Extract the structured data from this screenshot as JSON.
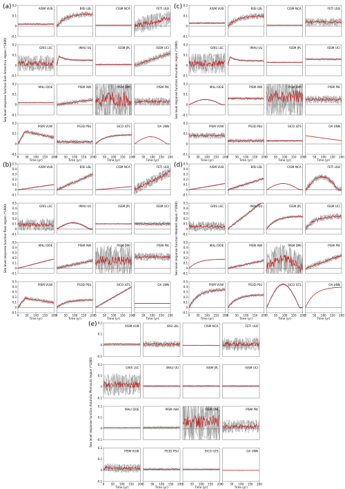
{
  "colors": {
    "ensemble": "#8c8c8c",
    "mean": "#c81e1e",
    "zero": "#000000"
  },
  "chart_data": [
    {
      "type": "line",
      "panel": "(a)",
      "ylabel": "Sea level response function East Antarctica region (*1000)",
      "xlabel": "Time (yr)",
      "xlim": [
        0,
        200
      ],
      "ylim": [
        -0.1,
        0.2
      ],
      "yticks": [
        -0.1,
        0,
        0.1,
        0.2
      ],
      "xticks": [
        0,
        50,
        100,
        150,
        200
      ],
      "grid": false,
      "subplots": [
        {
          "model": "AISM VUB",
          "shape": "flat",
          "level": 0.02,
          "noise": 0.01
        },
        {
          "model": "BISI LBL",
          "shape": "rise_sat",
          "level": 0.12,
          "noise": 0.03
        },
        {
          "model": "CISM NCA",
          "shape": "flat",
          "level": 0.01,
          "noise": 0.003
        },
        {
          "model": "FETI ULB",
          "shape": "rise",
          "level": 0.08,
          "noise": 0.08
        },
        {
          "model": "GRIS LSC",
          "shape": "flat",
          "level": 0.02,
          "noise": 0.08
        },
        {
          "model": "IMAU UU",
          "shape": "spike_decay",
          "level": 0.09,
          "noise": 0.01
        },
        {
          "model": "ISSM JPL",
          "shape": "flat",
          "level": 0.01,
          "noise": 0.005
        },
        {
          "model": "ISSM UCI",
          "shape": "rise",
          "level": 0.12,
          "noise": 0.03
        },
        {
          "model": "MALI DOE",
          "shape": "flat",
          "level": 0.02,
          "noise": 0.005
        },
        {
          "model": "PISM AWI",
          "shape": "rise",
          "level": 0.05,
          "noise": 0.02
        },
        {
          "model": "PISM DMI",
          "shape": "flat",
          "level": 0.05,
          "noise": 0.25
        },
        {
          "model": "PISM PIK",
          "shape": "flat",
          "level": 0.03,
          "noise": 0.04
        },
        {
          "model": "PISM VUW",
          "shape": "hump_decay",
          "level": 0.12,
          "noise": 0.02
        },
        {
          "model": "PS3D PSU",
          "shape": "flat",
          "level": 0.02,
          "noise": 0.02
        },
        {
          "model": "SICO ILTS",
          "shape": "rise_sat",
          "level": 0.09,
          "noise": 0.01
        },
        {
          "model": "OA UNN",
          "shape": "hump",
          "level": 0.07,
          "noise": 0.001
        }
      ]
    },
    {
      "type": "line",
      "panel": "(b)",
      "ylabel": "Sea level response function Ross region (*1000)",
      "xlabel": "Time (yr)",
      "xlim": [
        0,
        200
      ],
      "ylim": [
        -0.1,
        0.5
      ],
      "yticks": [
        -0.1,
        0,
        0.1,
        0.2,
        0.3,
        0.4,
        0.5
      ],
      "xticks": [
        0,
        50,
        100,
        150,
        200
      ],
      "grid": false,
      "subplots": [
        {
          "model": "AISM VUB",
          "shape": "rise",
          "level": 0.1,
          "noise": 0.01
        },
        {
          "model": "BISI LBL",
          "shape": "rise",
          "level": 0.3,
          "noise": 0.04
        },
        {
          "model": "CISM NCA",
          "shape": "rise",
          "level": 0.06,
          "noise": 0.005
        },
        {
          "model": "FETI ULB",
          "shape": "rise",
          "level": 0.35,
          "noise": 0.1
        },
        {
          "model": "GRIS LSC",
          "shape": "flat",
          "level": 0.08,
          "noise": 0.12
        },
        {
          "model": "IMAU UU",
          "shape": "hump",
          "level": 0.12,
          "noise": 0.02
        },
        {
          "model": "ISSM JPL",
          "shape": "flat",
          "level": 0.1,
          "noise": 0.01
        },
        {
          "model": "ISSM UCI",
          "shape": "flat",
          "level": 0.1,
          "noise": 0.04
        },
        {
          "model": "MALI DOE",
          "shape": "rise",
          "level": 0.18,
          "noise": 0.01
        },
        {
          "model": "PISM AWI",
          "shape": "rise",
          "level": 0.15,
          "noise": 0.04
        },
        {
          "model": "PISM DMI",
          "shape": "flat",
          "level": 0.15,
          "noise": 0.3
        },
        {
          "model": "PISM PIK",
          "shape": "flat",
          "level": 0.22,
          "noise": 0.08
        },
        {
          "model": "PISM VUW",
          "shape": "hump_decay",
          "level": 0.18,
          "noise": 0.04
        },
        {
          "model": "PS3D PSU",
          "shape": "rise_sat",
          "level": 0.15,
          "noise": 0.03
        },
        {
          "model": "SICO ILTS",
          "shape": "rise",
          "level": 0.4,
          "noise": 0.02
        },
        {
          "model": "OA UNN",
          "shape": "flat",
          "level": 0.08,
          "noise": 0.001
        }
      ]
    },
    {
      "type": "line",
      "panel": "(c)",
      "ylabel": "Sea level response function Amundsen region (*1000)",
      "xlabel": "Time (yr)",
      "xlim": [
        0,
        200
      ],
      "ylim": [
        -0.1,
        0.2
      ],
      "yticks": [
        -0.1,
        0,
        0.1,
        0.2
      ],
      "xticks": [
        0,
        50,
        100,
        150,
        200
      ],
      "grid": false,
      "subplots": [
        {
          "model": "AISM VUB",
          "shape": "flat",
          "level": 0.03,
          "noise": 0.01
        },
        {
          "model": "BISI LBL",
          "shape": "rise_sat",
          "level": 0.1,
          "noise": 0.03
        },
        {
          "model": "CISM NCA",
          "shape": "flat",
          "level": 0.01,
          "noise": 0.003
        },
        {
          "model": "FETI ULB",
          "shape": "flat",
          "level": 0.04,
          "noise": 0.04
        },
        {
          "model": "GRIS LSC",
          "shape": "flat",
          "level": 0.02,
          "noise": 0.1
        },
        {
          "model": "IMAU UU",
          "shape": "spike_decay",
          "level": 0.08,
          "noise": 0.01
        },
        {
          "model": "ISSM JPL",
          "shape": "flat",
          "level": 0.03,
          "noise": 0.005
        },
        {
          "model": "ISSM UCI",
          "shape": "flat",
          "level": 0.06,
          "noise": 0.01
        },
        {
          "model": "MALI DOE",
          "shape": "hump",
          "level": 0.05,
          "noise": 0.005
        },
        {
          "model": "PISM AWI",
          "shape": "flat",
          "level": 0.06,
          "noise": 0.015
        },
        {
          "model": "PISM DMI",
          "shape": "flat",
          "level": 0.08,
          "noise": 0.2
        },
        {
          "model": "PISM PIK",
          "shape": "flat",
          "level": 0.05,
          "noise": 0.04
        },
        {
          "model": "PISM VUW",
          "shape": "flat",
          "level": 0.08,
          "noise": 0.03
        },
        {
          "model": "PS3D PSU",
          "shape": "flat",
          "level": 0.03,
          "noise": 0.02
        },
        {
          "model": "SICO ILTS",
          "shape": "flat",
          "level": 0.03,
          "noise": 0.01
        },
        {
          "model": "OA UNN",
          "shape": "decay",
          "level": 0.08,
          "noise": 0.001
        }
      ]
    },
    {
      "type": "line",
      "panel": "(d)",
      "ylabel": "Sea level response function Weddell region (*1000)",
      "xlabel": "Time (yr)",
      "xlim": [
        0,
        200
      ],
      "ylim": [
        -0.1,
        0.5
      ],
      "yticks": [
        -0.1,
        0,
        0.1,
        0.2,
        0.3,
        0.4,
        0.5
      ],
      "xticks": [
        0,
        50,
        100,
        150,
        200
      ],
      "grid": false,
      "subplots": [
        {
          "model": "AISM VUB",
          "shape": "rise",
          "level": 0.12,
          "noise": 0.01
        },
        {
          "model": "BISI LBL",
          "shape": "rise",
          "level": 0.22,
          "noise": 0.03
        },
        {
          "model": "CISM NCA",
          "shape": "hump",
          "level": 0.12,
          "noise": 0.005
        },
        {
          "model": "FETI ULB",
          "shape": "hump",
          "level": 0.25,
          "noise": 0.06
        },
        {
          "model": "GRIS LSC",
          "shape": "flat",
          "level": 0.05,
          "noise": 0.1
        },
        {
          "model": "IMAU UU",
          "shape": "rise",
          "level": 0.55,
          "noise": 0.03
        },
        {
          "model": "ISSM JPL",
          "shape": "rise_sat",
          "level": 0.25,
          "noise": 0.03
        },
        {
          "model": "ISSM UCI",
          "shape": "rise_sat",
          "level": 0.25,
          "noise": 0.06
        },
        {
          "model": "MALI DOE",
          "shape": "rise_sat",
          "level": 0.18,
          "noise": 0.005
        },
        {
          "model": "PISM AWI",
          "shape": "rise",
          "level": 0.15,
          "noise": 0.03
        },
        {
          "model": "PISM DMI",
          "shape": "hump",
          "level": 0.18,
          "noise": 0.3
        },
        {
          "model": "PISM PIK",
          "shape": "rise",
          "level": 0.25,
          "noise": 0.05
        },
        {
          "model": "PISM VUW",
          "shape": "rise_sat",
          "level": 0.35,
          "noise": 0.04
        },
        {
          "model": "PS3D PSU",
          "shape": "rise_sat",
          "level": 0.25,
          "noise": 0.03
        },
        {
          "model": "SICO ILTS",
          "shape": "hump",
          "level": 0.45,
          "noise": 0.02
        },
        {
          "model": "OA UNN",
          "shape": "rise_sat",
          "level": 0.4,
          "noise": 0.001
        }
      ]
    },
    {
      "type": "line",
      "panel": "(e)",
      "ylabel": "Sea level response function Antarctic Peninsula region (*1000)",
      "xlabel": "Time (yr)",
      "xlim": [
        0,
        200
      ],
      "ylim": [
        -0.1,
        0.2
      ],
      "yticks": [
        -0.1,
        0,
        0.1,
        0.2
      ],
      "xticks": [
        0,
        50,
        100,
        150,
        200
      ],
      "grid": false,
      "subplots": [
        {
          "model": "AISM VUB",
          "shape": "flat",
          "level": 0.01,
          "noise": 0.01
        },
        {
          "model": "BISI LBL",
          "shape": "flat",
          "level": 0.01,
          "noise": 0.03
        },
        {
          "model": "CISM NCA",
          "shape": "flat",
          "level": 0.0,
          "noise": 0.002
        },
        {
          "model": "FETI ULB",
          "shape": "flat",
          "level": 0.01,
          "noise": 0.06
        },
        {
          "model": "GRIS LSC",
          "shape": "flat",
          "level": 0.02,
          "noise": 0.1
        },
        {
          "model": "IMAU UU",
          "shape": "flat",
          "level": 0.01,
          "noise": 0.005
        },
        {
          "model": "ISSM JPL",
          "shape": "flat",
          "level": 0.01,
          "noise": 0.005
        },
        {
          "model": "ISSM UCI",
          "shape": "flat",
          "level": 0.01,
          "noise": 0.005
        },
        {
          "model": "MALI DOE",
          "shape": "flat",
          "level": 0.01,
          "noise": 0.003
        },
        {
          "model": "PISM AWI",
          "shape": "flat",
          "level": 0.01,
          "noise": 0.01
        },
        {
          "model": "PISM DMI",
          "shape": "flat",
          "level": 0.06,
          "noise": 0.2
        },
        {
          "model": "PISM PIK",
          "shape": "flat",
          "level": 0.02,
          "noise": 0.06
        },
        {
          "model": "PISM VUW",
          "shape": "spike_decay",
          "level": 0.03,
          "noise": 0.04
        },
        {
          "model": "PS3D PSU",
          "shape": "flat",
          "level": 0.01,
          "noise": 0.01
        },
        {
          "model": "SICO ILTS",
          "shape": "flat",
          "level": 0.01,
          "noise": 0.005
        },
        {
          "model": "OA UNN",
          "shape": "flat",
          "level": 0.0,
          "noise": 0.001
        }
      ]
    }
  ]
}
